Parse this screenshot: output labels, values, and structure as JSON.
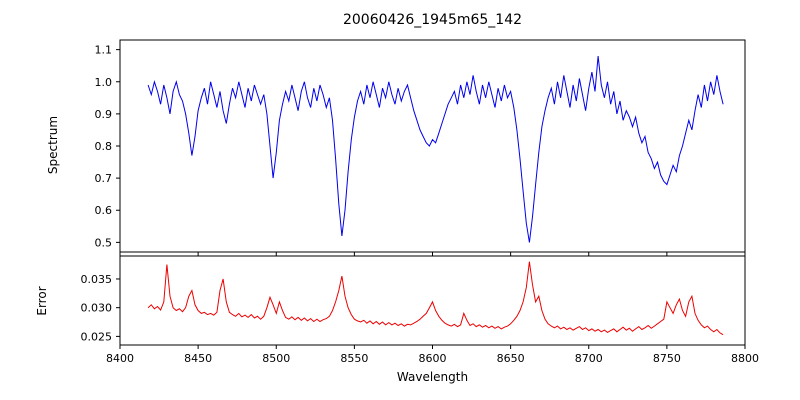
{
  "figure": {
    "background": "#ffffff",
    "frame_color": "#000000"
  },
  "chart_data": [
    {
      "type": "line",
      "title": "20060426_1945m65_142",
      "ylabel": "Spectrum",
      "color": "#0000ee",
      "ylim": [
        0.47,
        1.13
      ],
      "yticks": [
        0.5,
        0.6,
        0.7,
        0.8,
        0.9,
        1.0,
        1.1
      ],
      "ytick_labels": [
        "0.5",
        "0.6",
        "0.7",
        "0.8",
        "0.9",
        "1.0",
        "1.1"
      ],
      "x_start": 8418,
      "x_step": 2,
      "y": [
        0.99,
        0.96,
        1.0,
        0.97,
        0.93,
        0.99,
        0.95,
        0.9,
        0.97,
        1.0,
        0.96,
        0.94,
        0.9,
        0.84,
        0.77,
        0.83,
        0.91,
        0.95,
        0.98,
        0.93,
        1.0,
        0.96,
        0.92,
        0.97,
        0.91,
        0.87,
        0.93,
        0.98,
        0.95,
        1.0,
        0.96,
        0.92,
        0.98,
        0.94,
        0.99,
        0.96,
        0.93,
        0.96,
        0.9,
        0.8,
        0.7,
        0.78,
        0.88,
        0.93,
        0.97,
        0.94,
        0.99,
        0.95,
        0.91,
        0.97,
        1.0,
        0.95,
        0.92,
        0.98,
        0.94,
        0.99,
        0.96,
        0.92,
        0.95,
        0.88,
        0.76,
        0.62,
        0.52,
        0.6,
        0.72,
        0.82,
        0.89,
        0.94,
        0.97,
        0.93,
        0.99,
        0.95,
        1.0,
        0.96,
        0.92,
        0.98,
        0.95,
        1.0,
        0.96,
        0.93,
        0.98,
        0.94,
        0.97,
        0.99,
        0.95,
        0.91,
        0.88,
        0.85,
        0.83,
        0.81,
        0.8,
        0.82,
        0.81,
        0.84,
        0.87,
        0.9,
        0.93,
        0.95,
        0.97,
        0.93,
        0.99,
        0.95,
        1.0,
        0.96,
        1.02,
        0.97,
        0.93,
        0.99,
        0.95,
        1.0,
        0.96,
        0.92,
        0.98,
        0.94,
        0.99,
        0.95,
        0.97,
        0.92,
        0.85,
        0.76,
        0.66,
        0.56,
        0.5,
        0.58,
        0.68,
        0.78,
        0.86,
        0.91,
        0.95,
        0.98,
        0.93,
        1.0,
        0.95,
        1.02,
        0.97,
        0.92,
        0.99,
        0.94,
        1.01,
        0.96,
        0.91,
        0.98,
        1.03,
        0.97,
        1.08,
        0.99,
        0.95,
        1.0,
        0.93,
        0.97,
        0.9,
        0.94,
        0.88,
        0.91,
        0.89,
        0.86,
        0.89,
        0.84,
        0.81,
        0.83,
        0.78,
        0.76,
        0.73,
        0.75,
        0.71,
        0.69,
        0.68,
        0.71,
        0.74,
        0.72,
        0.77,
        0.8,
        0.84,
        0.88,
        0.85,
        0.91,
        0.96,
        0.92,
        0.99,
        0.94,
        1.0,
        0.96,
        1.02,
        0.97,
        0.93
      ]
    },
    {
      "type": "line",
      "ylabel": "Error",
      "xlabel": "Wavelength",
      "color": "#ee0000",
      "ylim": [
        0.0235,
        0.039
      ],
      "yticks": [
        0.025,
        0.03,
        0.035
      ],
      "ytick_labels": [
        "0.025",
        "0.030",
        "0.035"
      ],
      "xlim": [
        8400,
        8800
      ],
      "xticks": [
        8400,
        8450,
        8500,
        8550,
        8600,
        8650,
        8700,
        8750,
        8800
      ],
      "xtick_labels": [
        "8400",
        "8450",
        "8500",
        "8550",
        "8600",
        "8650",
        "8700",
        "8750",
        "8800"
      ],
      "x_start": 8418,
      "x_step": 2,
      "y": [
        0.03,
        0.0305,
        0.0298,
        0.0302,
        0.0296,
        0.031,
        0.0375,
        0.032,
        0.03,
        0.0295,
        0.0298,
        0.0293,
        0.03,
        0.032,
        0.033,
        0.0305,
        0.0295,
        0.029,
        0.0292,
        0.0288,
        0.029,
        0.0287,
        0.0292,
        0.033,
        0.035,
        0.031,
        0.0292,
        0.0288,
        0.0285,
        0.029,
        0.0284,
        0.0287,
        0.0283,
        0.0288,
        0.0282,
        0.0285,
        0.028,
        0.0285,
        0.03,
        0.0318,
        0.0305,
        0.029,
        0.031,
        0.0295,
        0.0283,
        0.028,
        0.0284,
        0.0279,
        0.0283,
        0.0278,
        0.0282,
        0.0277,
        0.0281,
        0.0276,
        0.028,
        0.0276,
        0.0279,
        0.0281,
        0.0285,
        0.0295,
        0.031,
        0.033,
        0.0355,
        0.032,
        0.03,
        0.0288,
        0.028,
        0.0277,
        0.0275,
        0.0278,
        0.0273,
        0.0277,
        0.0272,
        0.0276,
        0.0271,
        0.0275,
        0.027,
        0.0274,
        0.027,
        0.0273,
        0.0269,
        0.0272,
        0.0268,
        0.0271,
        0.027,
        0.0273,
        0.0276,
        0.028,
        0.0285,
        0.029,
        0.03,
        0.031,
        0.0295,
        0.0285,
        0.0278,
        0.0273,
        0.027,
        0.0268,
        0.0271,
        0.0267,
        0.027,
        0.029,
        0.0278,
        0.0269,
        0.0272,
        0.0267,
        0.027,
        0.0266,
        0.0269,
        0.0265,
        0.0268,
        0.0264,
        0.0267,
        0.0263,
        0.0266,
        0.0268,
        0.0272,
        0.0278,
        0.0285,
        0.0295,
        0.031,
        0.0335,
        0.038,
        0.034,
        0.031,
        0.032,
        0.0295,
        0.028,
        0.0272,
        0.0268,
        0.0265,
        0.0268,
        0.0263,
        0.0266,
        0.0262,
        0.0265,
        0.0261,
        0.0264,
        0.0267,
        0.0262,
        0.0265,
        0.026,
        0.0263,
        0.0259,
        0.0262,
        0.0258,
        0.0261,
        0.0257,
        0.026,
        0.0263,
        0.0258,
        0.0262,
        0.0266,
        0.0261,
        0.0264,
        0.0259,
        0.0263,
        0.0267,
        0.0262,
        0.0265,
        0.0269,
        0.0264,
        0.0268,
        0.0272,
        0.0276,
        0.028,
        0.031,
        0.03,
        0.029,
        0.0305,
        0.0315,
        0.0295,
        0.0285,
        0.031,
        0.032,
        0.029,
        0.0278,
        0.027,
        0.0265,
        0.0268,
        0.0262,
        0.0258,
        0.0262,
        0.0256,
        0.0253
      ]
    }
  ]
}
